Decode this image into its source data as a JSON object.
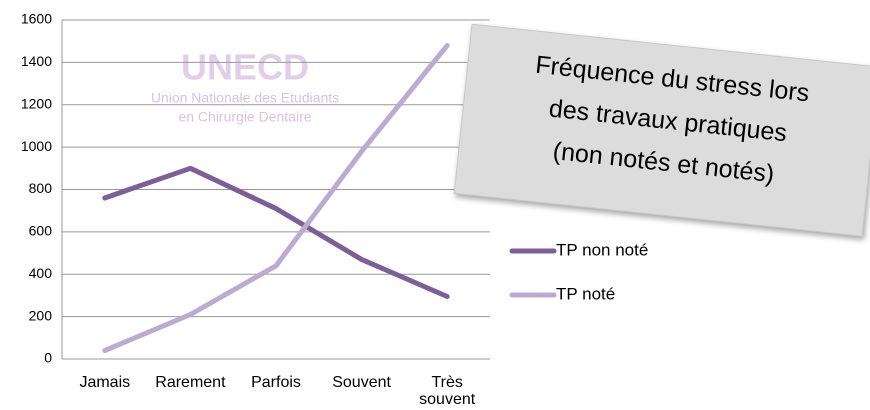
{
  "chart_data": {
    "type": "line",
    "title": [
      "Fréquence du stress lors",
      "des travaux pratiques",
      "(non notés et notés)"
    ],
    "watermark": {
      "logo": "UNECD",
      "lines": [
        "Union Nationale des Etudiants",
        "en Chirurgie Dentaire"
      ]
    },
    "categories": [
      "Jamais",
      "Rarement",
      "Parfois",
      "Souvent",
      "Très souvent"
    ],
    "series": [
      {
        "name": "TP non noté",
        "color": "#7b5f96",
        "values": [
          760,
          900,
          710,
          470,
          295
        ]
      },
      {
        "name": "TP noté",
        "color": "#b9acd0",
        "values": [
          40,
          210,
          440,
          980,
          1480
        ]
      }
    ],
    "ylim": [
      0,
      1600
    ],
    "yticks": [
      0,
      200,
      400,
      600,
      800,
      1000,
      1200,
      1400,
      1600
    ],
    "grid": true,
    "legend": "right"
  }
}
